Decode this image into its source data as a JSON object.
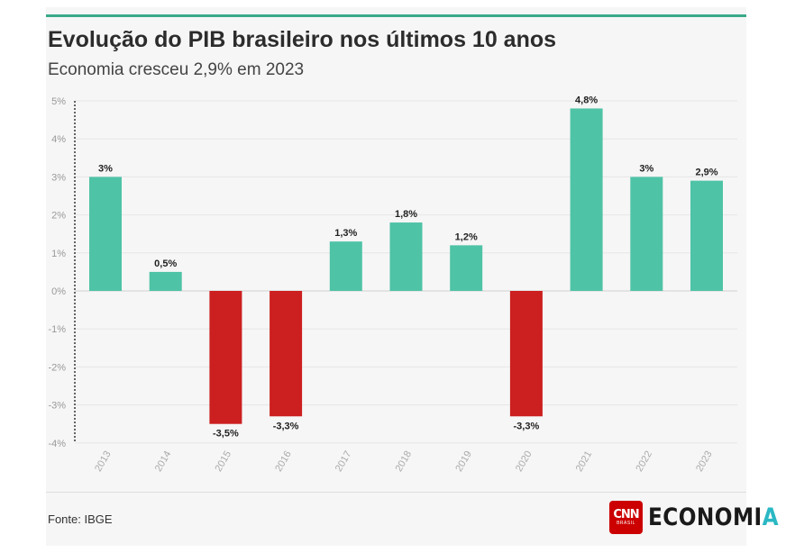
{
  "title": "Evolução do PIB brasileiro nos últimos 10 anos",
  "subtitle": "Economia cresceu 2,9% em 2023",
  "source": "Fonte: IBGE",
  "logo": {
    "badge_text": "CNN",
    "badge_subtext": "BRASIL",
    "wordmark_main": "ECONOMI",
    "wordmark_accent": "A"
  },
  "colors": {
    "positive": "#4fc3a6",
    "negative": "#cc1f1f",
    "accent_line": "#3aa98a"
  },
  "chart_data": {
    "type": "bar",
    "categories": [
      "2013",
      "2014",
      "2015",
      "2016",
      "2017",
      "2018",
      "2019",
      "2020",
      "2021",
      "2022",
      "2023"
    ],
    "values": [
      3.0,
      0.5,
      -3.5,
      -3.3,
      1.3,
      1.8,
      1.2,
      -3.3,
      4.8,
      3.0,
      2.9
    ],
    "data_labels": [
      "3%",
      "0,5%",
      "-3,5%",
      "-3,3%",
      "1,3%",
      "1,8%",
      "1,2%",
      "-3,3%",
      "4,8%",
      "3%",
      "2,9%"
    ],
    "y_ticks": [
      5,
      4,
      3,
      2,
      1,
      0,
      -1,
      -2,
      -3,
      -4
    ],
    "y_tick_labels": [
      "5%",
      "4%",
      "3%",
      "2%",
      "1%",
      "0%",
      "-1%",
      "-2%",
      "-3%",
      "-4%"
    ],
    "ylim": [
      -4,
      5
    ],
    "grid": true,
    "legend": "none"
  }
}
